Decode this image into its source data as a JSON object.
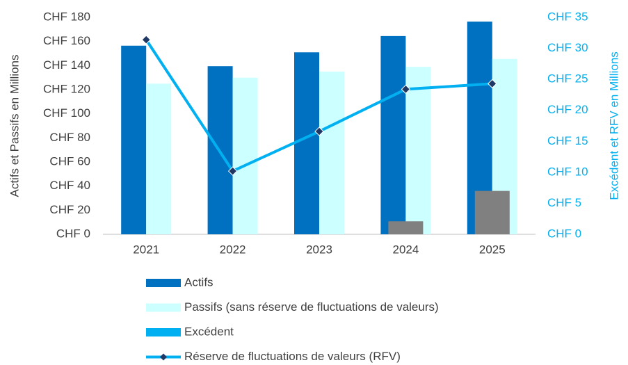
{
  "chart_data": {
    "type": "bar",
    "categories": [
      "2021",
      "2022",
      "2023",
      "2024",
      "2025"
    ],
    "ylabel": "Actifs et Passifs en Millions",
    "y2label": "Excédent et RFV en Millions",
    "ylim": [
      0,
      180
    ],
    "yticks": [
      {
        "value": 0,
        "label": "CHF 0"
      },
      {
        "value": 20,
        "label": "CHF 20"
      },
      {
        "value": 40,
        "label": "CHF 40"
      },
      {
        "value": 60,
        "label": "CHF 60"
      },
      {
        "value": 80,
        "label": "CHF 80"
      },
      {
        "value": 100,
        "label": "CHF 100"
      },
      {
        "value": 120,
        "label": "CHF 120"
      },
      {
        "value": 140,
        "label": "CHF 140"
      },
      {
        "value": 160,
        "label": "CHF 160"
      },
      {
        "value": 180,
        "label": "CHF 180"
      }
    ],
    "y2lim": [
      0,
      35
    ],
    "y2ticks": [
      {
        "value": 0,
        "label": "CHF 0"
      },
      {
        "value": 5,
        "label": "CHF 5"
      },
      {
        "value": 10,
        "label": "CHF 10"
      },
      {
        "value": 15,
        "label": "CHF 15"
      },
      {
        "value": 20,
        "label": "CHF 20"
      },
      {
        "value": 25,
        "label": "CHF 25"
      },
      {
        "value": 30,
        "label": "CHF 30"
      },
      {
        "value": 35,
        "label": "CHF 35"
      }
    ],
    "y2color": "#00b0f0",
    "legend": "bottom",
    "series": [
      {
        "name": "Actifs",
        "type": "bar",
        "color": "#0070c0",
        "values": [
          156.5,
          139.5,
          151,
          164.5,
          176.5
        ]
      },
      {
        "name": "Passifs (sans réserve de fluctuations de valeurs)",
        "type": "bar",
        "color": "#ccffff",
        "values": [
          125,
          130,
          135,
          139,
          145.5
        ]
      },
      {
        "name": "Excédent",
        "type": "bar",
        "axis": "y2",
        "color": "#808080",
        "legend_color": "#00b0f0",
        "values": [
          null,
          null,
          null,
          2.1,
          7
        ]
      },
      {
        "name": "Réserve de fluctuations de valeurs (RFV)",
        "type": "line",
        "axis": "y2",
        "color": "#00b0f0",
        "marker_color": "#1f3864",
        "values": [
          31.4,
          10.2,
          16.6,
          23.4,
          24.3
        ]
      }
    ]
  }
}
